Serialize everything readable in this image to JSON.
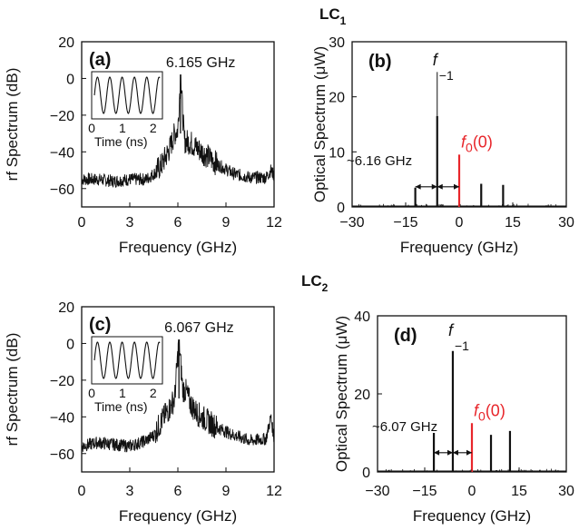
{
  "figure": {
    "title_lc1": "LC",
    "title_lc1_sub": "1",
    "title_lc2": "LC",
    "title_lc2_sub": "2"
  },
  "chart_data": [
    {
      "type": "line",
      "panel_label": "(a)",
      "title": "",
      "xlabel": "Frequency (GHz)",
      "ylabel": "rf Spectrum (dB)",
      "xlim": [
        0,
        12
      ],
      "ylim": [
        -70,
        20
      ],
      "xticks": [
        0,
        3,
        6,
        9,
        12
      ],
      "yticks": [
        -60,
        -40,
        -20,
        0,
        20
      ],
      "peak": {
        "x": 6.165,
        "y": 2,
        "label": "6.165 GHz"
      },
      "noise_floor_db": -57,
      "series": [
        {
          "x": [
            0.0,
            1.0,
            2.0,
            3.0,
            4.0,
            4.5,
            5.0,
            5.5,
            5.8,
            6.0,
            6.165,
            6.4,
            6.8,
            7.2,
            7.8,
            8.5,
            9.5,
            10.5,
            11.5,
            11.8,
            12.0
          ],
          "y": [
            -55,
            -55,
            -56,
            -55,
            -55,
            -52,
            -47,
            -38,
            -30,
            -28,
            2,
            -34,
            -35,
            -38,
            -42,
            -47,
            -52,
            -54,
            -54,
            -50,
            -53
          ]
        }
      ],
      "inset": {
        "type": "line",
        "xlabel": "Time (ns)",
        "xticks": [
          0,
          1,
          2
        ],
        "xlim": [
          0,
          2.3
        ],
        "period_ns": 0.162,
        "shape": "sine"
      }
    },
    {
      "type": "bar",
      "panel_label": "(b)",
      "title": "",
      "xlabel": "Frequency (GHz)",
      "ylabel": "Optical Spectrum (μW)",
      "xlim": [
        -30,
        30
      ],
      "ylim": [
        0,
        30
      ],
      "xticks": [
        -30,
        -15,
        0,
        15,
        30
      ],
      "yticks": [
        0,
        10,
        20,
        30
      ],
      "x": [
        -12.3,
        -6.165,
        0,
        6.165,
        12.3
      ],
      "values": [
        3.5,
        16.5,
        9.5,
        4.2,
        4.0
      ],
      "value_colors": [
        "#111111",
        "#111111",
        "#e8262b",
        "#111111",
        "#111111"
      ],
      "peak_marker": {
        "x": -6.165,
        "y": 24.5
      },
      "annotations": {
        "f_minus1": {
          "base": "f",
          "sub": "−1",
          "color": "#111111"
        },
        "f0": {
          "base": "f",
          "sub": "0",
          "tail": "(0)",
          "color": "#e8262b"
        },
        "spacing_label": "~6.16 GHz"
      }
    },
    {
      "type": "line",
      "panel_label": "(c)",
      "title": "",
      "xlabel": "Frequency (GHz)",
      "ylabel": "rf Spectrum (dB)",
      "xlim": [
        0,
        12
      ],
      "ylim": [
        -70,
        20
      ],
      "xticks": [
        0,
        3,
        6,
        9,
        12
      ],
      "yticks": [
        -60,
        -40,
        -20,
        0,
        20
      ],
      "peak": {
        "x": 6.067,
        "y": 2,
        "label": "6.067 GHz"
      },
      "noise_floor_db": -55,
      "series": [
        {
          "x": [
            0.0,
            1.0,
            2.0,
            3.0,
            4.0,
            4.5,
            5.0,
            5.5,
            5.8,
            6.067,
            6.3,
            6.5,
            6.8,
            7.2,
            7.8,
            8.5,
            9.5,
            10.5,
            11.5,
            11.8,
            12.0
          ],
          "y": [
            -56,
            -54,
            -55,
            -56,
            -53,
            -50,
            -42,
            -35,
            -30,
            2,
            -25,
            -26,
            -33,
            -38,
            -42,
            -46,
            -50,
            -53,
            -52,
            -40,
            -52
          ]
        }
      ],
      "inset": {
        "type": "line",
        "xlabel": "Time (ns)",
        "xticks": [
          0,
          1,
          2
        ],
        "xlim": [
          0,
          2.3
        ],
        "period_ns": 0.165,
        "shape": "sine"
      }
    },
    {
      "type": "bar",
      "panel_label": "(d)",
      "title": "",
      "xlabel": "Frequency (GHz)",
      "ylabel": "Optical Spectrum (μW)",
      "xlim": [
        -30,
        30
      ],
      "ylim": [
        0,
        40
      ],
      "xticks": [
        -30,
        -15,
        0,
        15,
        30
      ],
      "yticks": [
        0,
        20,
        40
      ],
      "x": [
        -12.1,
        -6.067,
        0,
        6.067,
        12.1
      ],
      "values": [
        10,
        31,
        12.5,
        9.5,
        10.5
      ],
      "value_colors": [
        "#111111",
        "#111111",
        "#e8262b",
        "#111111",
        "#111111"
      ],
      "annotations": {
        "f_minus1": {
          "base": "f",
          "sub": "−1",
          "color": "#111111"
        },
        "f0": {
          "base": "f",
          "sub": "0",
          "tail": "(0)",
          "color": "#e8262b"
        },
        "spacing_label": "~6.07 GHz"
      }
    }
  ]
}
